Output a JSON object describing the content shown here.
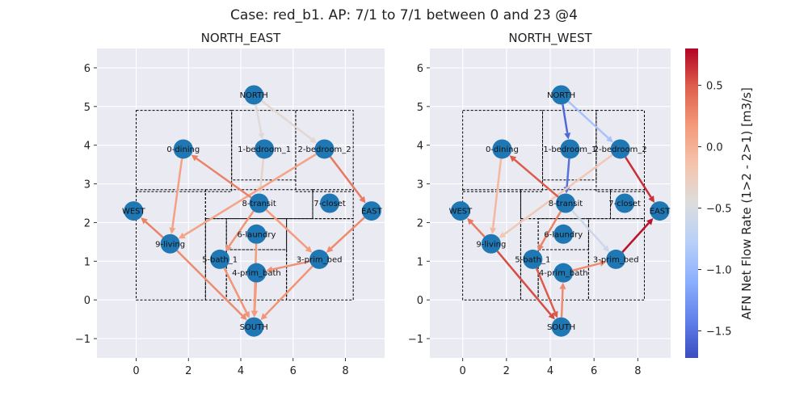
{
  "title": "Case: red_b1. AP: 7/1 to 7/1 between 0 and 23 @4",
  "colorbar": {
    "label": "AFN Net Flow Rate (1>2 - 2>1) [m3/s]",
    "min": -1.72,
    "max": 0.8,
    "ticks": [
      "0.5",
      "0.0",
      "−0.5",
      "−1.0",
      "−1.5"
    ],
    "tick_values": [
      0.5,
      0.0,
      -0.5,
      -1.0,
      -1.5
    ],
    "colormap": "coolwarm"
  },
  "chart_data": [
    {
      "type": "network",
      "title": "NORTH_EAST",
      "xlim": [
        -1.5,
        9.5
      ],
      "ylim": [
        -1.5,
        6.5
      ],
      "x_ticks": [
        0,
        2,
        4,
        6,
        8
      ],
      "y_ticks": [
        -1,
        0,
        1,
        2,
        3,
        4,
        5,
        6
      ],
      "grid": true,
      "rooms": [
        {
          "x0": 0,
          "y0": 2.8,
          "x1": 3.65,
          "y1": 4.9
        },
        {
          "x0": 3.65,
          "y0": 3.1,
          "x1": 6.1,
          "y1": 4.9
        },
        {
          "x0": 6.1,
          "y0": 2.8,
          "x1": 8.3,
          "y1": 4.9
        },
        {
          "x0": 0,
          "y0": 0,
          "x1": 2.65,
          "y1": 2.85
        },
        {
          "x0": 2.65,
          "y0": 2.1,
          "x1": 6.75,
          "y1": 2.85
        },
        {
          "x0": 6.75,
          "y0": 2.1,
          "x1": 8.3,
          "y1": 2.85
        },
        {
          "x0": 3.45,
          "y0": 1.3,
          "x1": 5.75,
          "y1": 2.1
        },
        {
          "x0": 2.65,
          "y0": 0,
          "x1": 3.45,
          "y1": 2.1
        },
        {
          "x0": 3.45,
          "y0": 0,
          "x1": 5.75,
          "y1": 1.3
        },
        {
          "x0": 5.75,
          "y0": 0,
          "x1": 8.3,
          "y1": 2.1
        }
      ],
      "nodes": [
        {
          "id": "NORTH",
          "label": "NORTH",
          "x": 4.5,
          "y": 5.3
        },
        {
          "id": "0-dining",
          "label": "0-dining",
          "x": 1.8,
          "y": 3.9
        },
        {
          "id": "1-bedroom_1",
          "label": "1-bedroom_1",
          "x": 4.9,
          "y": 3.9
        },
        {
          "id": "2-bedroom_2",
          "label": "2-bedroom_2",
          "x": 7.2,
          "y": 3.9
        },
        {
          "id": "WEST",
          "label": "WEST",
          "x": -0.1,
          "y": 2.3
        },
        {
          "id": "8-transit",
          "label": "8-transit",
          "x": 4.7,
          "y": 2.5
        },
        {
          "id": "7-closet",
          "label": "7-closet",
          "x": 7.4,
          "y": 2.5
        },
        {
          "id": "EAST",
          "label": "EAST",
          "x": 9.0,
          "y": 2.3
        },
        {
          "id": "6-laundry",
          "label": "6-laundry",
          "x": 4.6,
          "y": 1.7
        },
        {
          "id": "9-living",
          "label": "9-living",
          "x": 1.3,
          "y": 1.45
        },
        {
          "id": "5-bath_1",
          "label": "5-bath_1",
          "x": 3.2,
          "y": 1.05
        },
        {
          "id": "3-prim_bed",
          "label": "3-prim_bed",
          "x": 7.0,
          "y": 1.05
        },
        {
          "id": "4-prim_bath",
          "label": "4-prim_bath",
          "x": 4.6,
          "y": 0.7
        },
        {
          "id": "SOUTH",
          "label": "SOUTH",
          "x": 4.5,
          "y": -0.7
        }
      ],
      "edges": [
        {
          "from": "NORTH",
          "to": "1-bedroom_1",
          "value": -0.42
        },
        {
          "from": "NORTH",
          "to": "2-bedroom_2",
          "value": -0.38
        },
        {
          "from": "1-bedroom_1",
          "to": "8-transit",
          "value": -0.35
        },
        {
          "from": "2-bedroom_2",
          "to": "9-living",
          "value": 0.1
        },
        {
          "from": "2-bedroom_2",
          "to": "EAST",
          "value": 0.35
        },
        {
          "from": "8-transit",
          "to": "0-dining",
          "value": 0.3
        },
        {
          "from": "0-dining",
          "to": "9-living",
          "value": 0.12
        },
        {
          "from": "9-living",
          "to": "WEST",
          "value": 0.3
        },
        {
          "from": "8-transit",
          "to": "5-bath_1",
          "value": 0.2
        },
        {
          "from": "8-transit",
          "to": "3-prim_bed",
          "value": 0.15
        },
        {
          "from": "EAST",
          "to": "3-prim_bed",
          "value": 0.25
        },
        {
          "from": "3-prim_bed",
          "to": "4-prim_bath",
          "value": 0.22
        },
        {
          "from": "9-living",
          "to": "SOUTH",
          "value": 0.25
        },
        {
          "from": "5-bath_1",
          "to": "SOUTH",
          "value": 0.2
        },
        {
          "from": "4-prim_bath",
          "to": "SOUTH",
          "value": 0.22
        },
        {
          "from": "3-prim_bed",
          "to": "SOUTH",
          "value": 0.2
        },
        {
          "from": "6-laundry",
          "to": "SOUTH",
          "value": 0.15
        }
      ]
    },
    {
      "type": "network",
      "title": "NORTH_WEST",
      "xlim": [
        -1.5,
        9.5
      ],
      "ylim": [
        -1.5,
        6.5
      ],
      "x_ticks": [
        0,
        2,
        4,
        6,
        8
      ],
      "y_ticks": [
        -1,
        0,
        1,
        2,
        3,
        4,
        5,
        6
      ],
      "grid": true,
      "rooms": [
        {
          "x0": 0,
          "y0": 2.8,
          "x1": 3.65,
          "y1": 4.9
        },
        {
          "x0": 3.65,
          "y0": 3.1,
          "x1": 6.1,
          "y1": 4.9
        },
        {
          "x0": 6.1,
          "y0": 2.8,
          "x1": 8.3,
          "y1": 4.9
        },
        {
          "x0": 0,
          "y0": 0,
          "x1": 2.65,
          "y1": 2.85
        },
        {
          "x0": 2.65,
          "y0": 2.1,
          "x1": 6.75,
          "y1": 2.85
        },
        {
          "x0": 6.75,
          "y0": 2.1,
          "x1": 8.3,
          "y1": 2.85
        },
        {
          "x0": 3.45,
          "y0": 1.3,
          "x1": 5.75,
          "y1": 2.1
        },
        {
          "x0": 2.65,
          "y0": 0,
          "x1": 3.45,
          "y1": 2.1
        },
        {
          "x0": 3.45,
          "y0": 0,
          "x1": 5.75,
          "y1": 1.3
        },
        {
          "x0": 5.75,
          "y0": 0,
          "x1": 8.3,
          "y1": 2.1
        }
      ],
      "nodes": [
        {
          "id": "NORTH",
          "label": "NORTH",
          "x": 4.5,
          "y": 5.3
        },
        {
          "id": "0-dining",
          "label": "0-dining",
          "x": 1.8,
          "y": 3.9
        },
        {
          "id": "1-bedroom_1",
          "label": "1-bedroom_1",
          "x": 4.9,
          "y": 3.9
        },
        {
          "id": "2-bedroom_2",
          "label": "2-bedroom_2",
          "x": 7.2,
          "y": 3.9
        },
        {
          "id": "WEST",
          "label": "WEST",
          "x": -0.1,
          "y": 2.3
        },
        {
          "id": "8-transit",
          "label": "8-transit",
          "x": 4.7,
          "y": 2.5
        },
        {
          "id": "7-closet",
          "label": "7-closet",
          "x": 7.4,
          "y": 2.5
        },
        {
          "id": "EAST",
          "label": "EAST",
          "x": 9.0,
          "y": 2.3
        },
        {
          "id": "6-laundry",
          "label": "6-laundry",
          "x": 4.6,
          "y": 1.7
        },
        {
          "id": "9-living",
          "label": "9-living",
          "x": 1.3,
          "y": 1.45
        },
        {
          "id": "5-bath_1",
          "label": "5-bath_1",
          "x": 3.2,
          "y": 1.05
        },
        {
          "id": "3-prim_bed",
          "label": "3-prim_bed",
          "x": 7.0,
          "y": 1.05
        },
        {
          "id": "4-prim_bath",
          "label": "4-prim_bath",
          "x": 4.6,
          "y": 0.7
        },
        {
          "id": "SOUTH",
          "label": "SOUTH",
          "x": 4.5,
          "y": -0.7
        }
      ],
      "edges": [
        {
          "from": "NORTH",
          "to": "1-bedroom_1",
          "value": -1.55
        },
        {
          "from": "NORTH",
          "to": "2-bedroom_2",
          "value": -0.9
        },
        {
          "from": "1-bedroom_1",
          "to": "8-transit",
          "value": -1.5
        },
        {
          "from": "2-bedroom_2",
          "to": "EAST",
          "value": 0.65
        },
        {
          "from": "2-bedroom_2",
          "to": "9-living",
          "value": -0.2
        },
        {
          "from": "8-transit",
          "to": "0-dining",
          "value": 0.5
        },
        {
          "from": "0-dining",
          "to": "9-living",
          "value": -0.05
        },
        {
          "from": "9-living",
          "to": "WEST",
          "value": 0.35
        },
        {
          "from": "9-living",
          "to": "SOUTH",
          "value": 0.55
        },
        {
          "from": "5-bath_1",
          "to": "SOUTH",
          "value": 0.5
        },
        {
          "from": "SOUTH",
          "to": "4-prim_bath",
          "value": 0.25
        },
        {
          "from": "4-prim_bath",
          "to": "3-prim_bed",
          "value": 0.25
        },
        {
          "from": "3-prim_bed",
          "to": "EAST",
          "value": 0.75
        },
        {
          "from": "8-transit",
          "to": "3-prim_bed",
          "value": -0.6
        },
        {
          "from": "8-transit",
          "to": "5-bath_1",
          "value": 0.3
        }
      ]
    }
  ]
}
